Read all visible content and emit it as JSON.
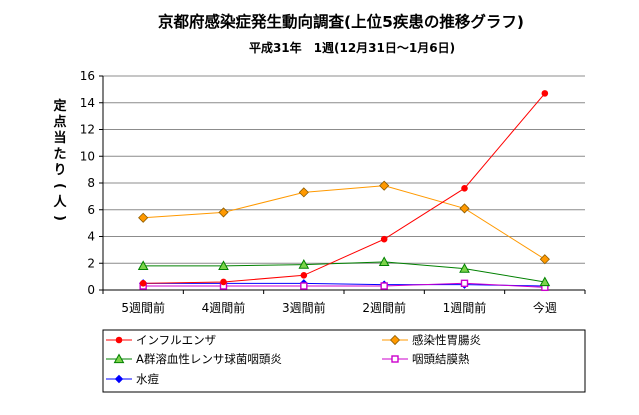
{
  "chart_data": {
    "type": "line",
    "title": "京都府感染症発生動向調査(上位5疾患の推移グラフ)",
    "subtitle": "平成31年　1週(12月31日～1月6日)",
    "ylabel": "定点当たり(人)",
    "xlabel": "",
    "categories": [
      "5週間前",
      "4週間前",
      "3週間前",
      "2週間前",
      "1週間前",
      "今週"
    ],
    "y_ticks": [
      "0",
      "2",
      "4",
      "6",
      "8",
      "10",
      "12",
      "14",
      "16"
    ],
    "ylim": [
      0,
      16
    ],
    "grid": "horizontal",
    "legend_position": "bottom",
    "series": [
      {
        "name": "インフルエンザ",
        "color": "#ff0000",
        "marker": "circle",
        "values": [
          0.5,
          0.6,
          1.1,
          3.8,
          7.6,
          14.7
        ]
      },
      {
        "name": "感染性胃腸炎",
        "color": "#ff9900",
        "marker": "diamond",
        "values": [
          5.4,
          5.8,
          7.3,
          7.8,
          6.1,
          2.3
        ]
      },
      {
        "name": "A群溶血性レンサ球菌咽頭炎",
        "color": "#008000",
        "marker": "triangle",
        "values": [
          1.8,
          1.8,
          1.9,
          2.1,
          1.6,
          0.6
        ]
      },
      {
        "name": "咽頭結膜熱",
        "color": "#cc00cc",
        "marker": "square",
        "values": [
          0.3,
          0.3,
          0.3,
          0.3,
          0.5,
          0.2
        ]
      },
      {
        "name": "水痘",
        "color": "#0000ff",
        "marker": "diamond-small",
        "values": [
          0.5,
          0.5,
          0.5,
          0.4,
          0.4,
          0.3
        ]
      }
    ]
  }
}
